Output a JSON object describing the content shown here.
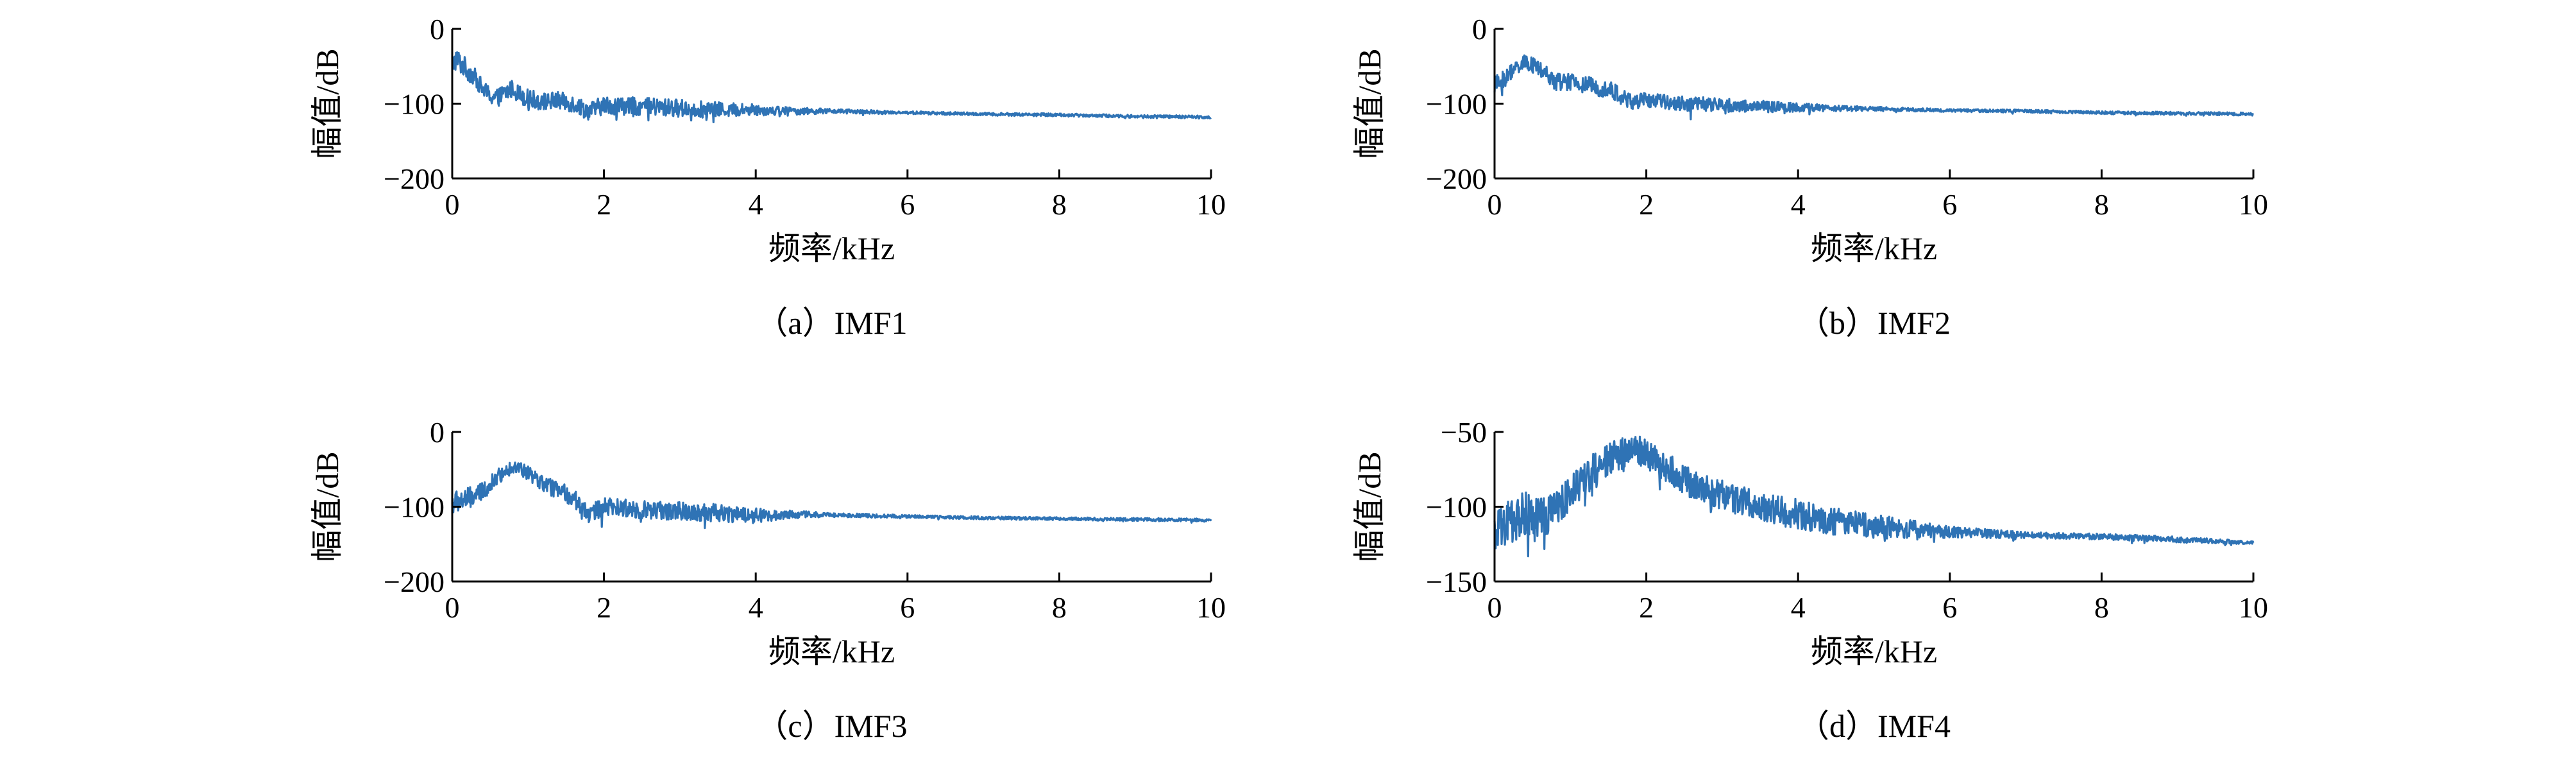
{
  "colors": {
    "line": "#2f73b5",
    "axis": "#000000"
  },
  "chart_data": [
    {
      "type": "line",
      "caption": "（a）IMF1",
      "xlabel": "频率/kHz",
      "ylabel": "幅值/dB",
      "xlim": [
        0,
        10
      ],
      "ylim": [
        -200,
        0
      ],
      "xticks": [
        "0",
        "2",
        "4",
        "6",
        "8",
        "10"
      ],
      "yticks": [
        "0",
        "−100",
        "−200"
      ],
      "series": [
        {
          "x": [
            0,
            0.05,
            0.1,
            0.2,
            0.3,
            0.4,
            0.5,
            0.6,
            0.7,
            0.8,
            0.9,
            1.0,
            1.2,
            1.4,
            1.6,
            1.8,
            2.0,
            2.5,
            3.0,
            3.5,
            4.0,
            4.5,
            5.0,
            6.0,
            7.0,
            8.0,
            9.0,
            10.0
          ],
          "y": [
            -50,
            -40,
            -45,
            -55,
            -65,
            -80,
            -90,
            -92,
            -85,
            -80,
            -88,
            -93,
            -97,
            -96,
            -100,
            -110,
            -102,
            -104,
            -106,
            -108,
            -108,
            -110,
            -110,
            -112,
            -114,
            -115,
            -117,
            -118
          ],
          "noise": [
            15,
            15,
            15,
            14,
            12,
            12,
            12,
            12,
            12,
            12,
            12,
            12,
            12,
            12,
            12,
            12,
            12,
            12,
            12,
            10,
            8,
            5,
            3,
            2,
            2,
            2,
            2,
            2
          ]
        }
      ]
    },
    {
      "type": "line",
      "caption": "（b）IMF2",
      "xlabel": "频率/kHz",
      "ylabel": "幅值/dB",
      "xlim": [
        0,
        10
      ],
      "ylim": [
        -200,
        0
      ],
      "xticks": [
        "0",
        "2",
        "4",
        "6",
        "8",
        "10"
      ],
      "yticks": [
        "0",
        "−100",
        "−200"
      ],
      "series": [
        {
          "x": [
            0,
            0.1,
            0.2,
            0.3,
            0.4,
            0.5,
            0.6,
            0.8,
            1.0,
            1.2,
            1.5,
            1.8,
            2.0,
            2.5,
            3.0,
            3.5,
            4.0,
            4.5,
            5.0,
            6.0,
            7.0,
            8.0,
            9.0,
            10.0
          ],
          "y": [
            -75,
            -70,
            -60,
            -50,
            -45,
            -48,
            -55,
            -70,
            -72,
            -75,
            -80,
            -98,
            -95,
            -100,
            -102,
            -104,
            -105,
            -106,
            -107,
            -109,
            -110,
            -112,
            -113,
            -114
          ],
          "noise": [
            12,
            12,
            12,
            10,
            10,
            10,
            10,
            12,
            12,
            12,
            12,
            12,
            10,
            10,
            10,
            8,
            6,
            4,
            3,
            2,
            2,
            2,
            2,
            2
          ]
        }
      ]
    },
    {
      "type": "line",
      "caption": "（c）IMF3",
      "xlabel": "频率/kHz",
      "ylabel": "幅值/dB",
      "xlim": [
        0,
        10
      ],
      "ylim": [
        -200,
        0
      ],
      "xticks": [
        "0",
        "2",
        "4",
        "6",
        "8",
        "10"
      ],
      "yticks": [
        "0",
        "−100",
        "−200"
      ],
      "series": [
        {
          "x": [
            0,
            0.2,
            0.4,
            0.6,
            0.8,
            1.0,
            1.2,
            1.4,
            1.6,
            1.8,
            2.0,
            2.5,
            3.0,
            3.5,
            4.0,
            4.5,
            5.0,
            6.0,
            7.0,
            8.0,
            9.0,
            10.0
          ],
          "y": [
            -95,
            -90,
            -80,
            -60,
            -45,
            -55,
            -70,
            -78,
            -88,
            -110,
            -100,
            -104,
            -106,
            -108,
            -112,
            -110,
            -111,
            -113,
            -115,
            -116,
            -117,
            -118
          ],
          "noise": [
            15,
            15,
            12,
            10,
            10,
            10,
            10,
            12,
            12,
            12,
            12,
            12,
            12,
            12,
            10,
            5,
            3,
            2,
            2,
            2,
            2,
            2
          ]
        }
      ]
    },
    {
      "type": "line",
      "caption": "（d）IMF4",
      "xlabel": "频率/kHz",
      "ylabel": "幅值/dB",
      "xlim": [
        0,
        10
      ],
      "ylim": [
        -150,
        -50
      ],
      "xticks": [
        "0",
        "2",
        "4",
        "6",
        "8",
        "10"
      ],
      "yticks": [
        "−50",
        "−100",
        "−150"
      ],
      "series": [
        {
          "x": [
            0,
            0.2,
            0.4,
            0.6,
            0.8,
            1.0,
            1.2,
            1.5,
            1.8,
            2.0,
            2.3,
            2.6,
            3.0,
            3.5,
            4.0,
            4.5,
            5.0,
            5.5,
            6.0,
            6.5,
            7.0,
            8.0,
            9.0,
            10.0
          ],
          "y": [
            -120,
            -110,
            -105,
            -110,
            -100,
            -90,
            -80,
            -70,
            -60,
            -65,
            -75,
            -85,
            -92,
            -100,
            -105,
            -110,
            -113,
            -115,
            -117,
            -118,
            -119,
            -120,
            -122,
            -124
          ],
          "noise": [
            15,
            15,
            15,
            15,
            14,
            12,
            12,
            12,
            10,
            10,
            10,
            10,
            10,
            10,
            10,
            9,
            8,
            6,
            4,
            3,
            2,
            2,
            2,
            1
          ]
        }
      ]
    }
  ]
}
